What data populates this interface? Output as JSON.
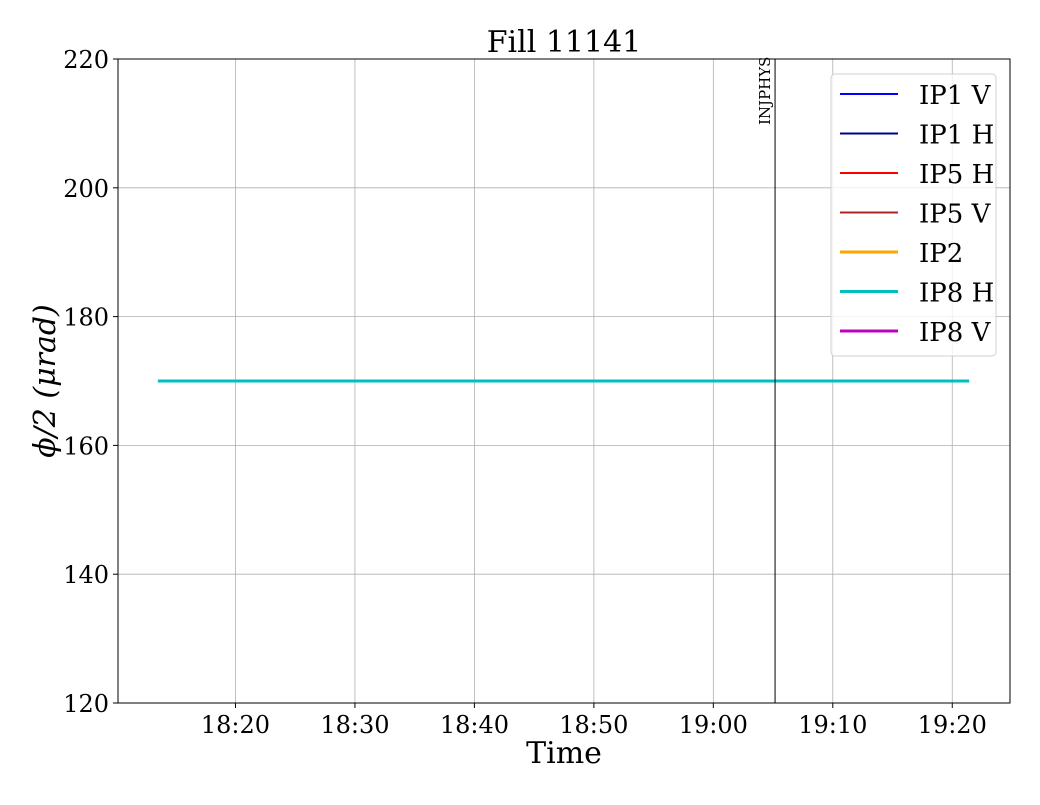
{
  "chart_data": {
    "type": "line",
    "title": "Fill 11141",
    "xlabel": "Time",
    "ylabel": "ϕ/2 (μrad)",
    "xlim": [
      "18:10:10",
      "19:24:50"
    ],
    "ylim": [
      120,
      220
    ],
    "xticks": [
      "18:20",
      "18:30",
      "18:40",
      "18:50",
      "19:00",
      "19:10",
      "19:20"
    ],
    "yticks": [
      120,
      140,
      160,
      180,
      200,
      220
    ],
    "grid": true,
    "legend_position": "top-right",
    "series": [
      {
        "name": "IP1 V",
        "color": "#0000ff",
        "points": []
      },
      {
        "name": "IP1 H",
        "color": "#00008b",
        "points": []
      },
      {
        "name": "IP5 H",
        "color": "#ff0000",
        "points": []
      },
      {
        "name": "IP5 V",
        "color": "#b22222",
        "points": []
      },
      {
        "name": "IP2",
        "color": "#ffa500",
        "points": []
      },
      {
        "name": "IP8 H",
        "color": "#00bfbf",
        "points": [
          [
            "18:13:30",
            170
          ],
          [
            "19:21:25",
            170
          ]
        ]
      },
      {
        "name": "IP8 V",
        "color": "#bf00bf",
        "points": []
      }
    ],
    "annotations": [
      {
        "type": "vline",
        "x": "19:05:10",
        "label": "INJPHYS",
        "color": "#000000"
      }
    ]
  }
}
